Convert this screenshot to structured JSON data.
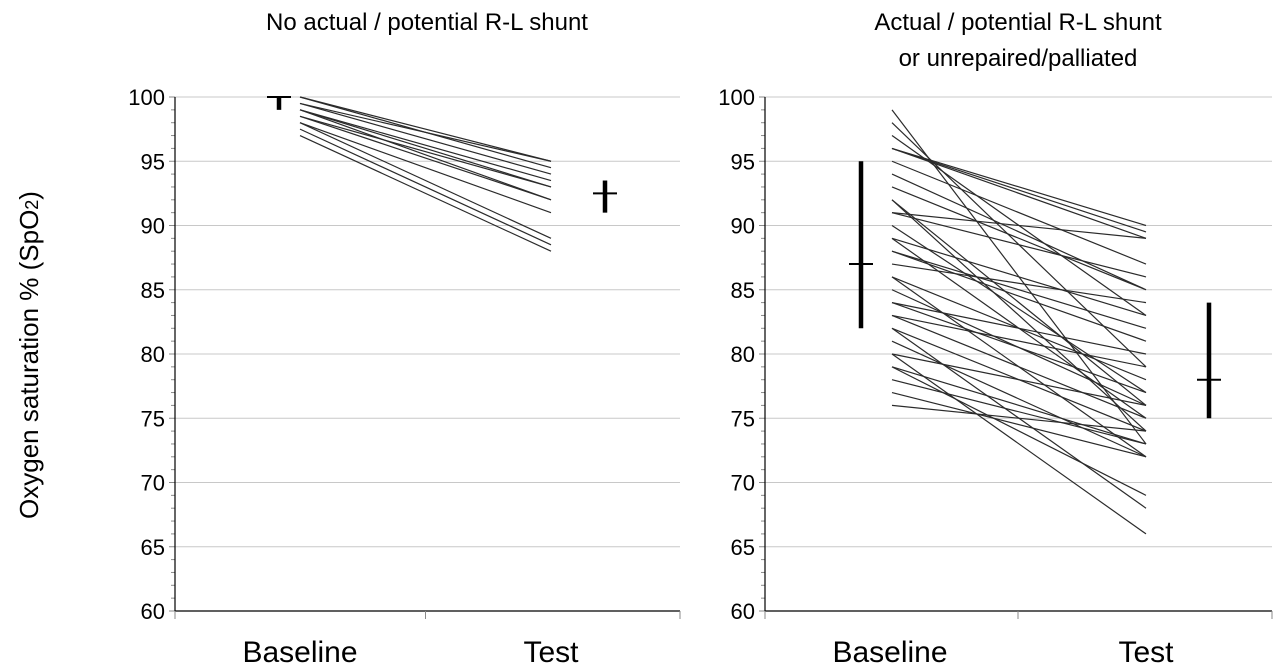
{
  "y_axis_title": {
    "main": "Oxygen saturation % (SpO",
    "sub": "2",
    "close": ")"
  },
  "chart_data": [
    {
      "type": "line",
      "title": "No actual / potential R-L shunt",
      "title_lines": [
        "No actual / potential R-L shunt"
      ],
      "categories": [
        "Baseline",
        "Test"
      ],
      "ylim": [
        60,
        100
      ],
      "yticks": [
        60,
        65,
        70,
        75,
        80,
        85,
        90,
        95,
        100
      ],
      "grid": true,
      "minor_ticks_every": 1,
      "baseline_summary": {
        "mean": 100,
        "low": 99,
        "high": 100
      },
      "test_summary": {
        "mean": 92.5,
        "low": 91,
        "high": 93.5
      },
      "series": [
        {
          "values": [
            100,
            95
          ]
        },
        {
          "values": [
            100,
            94.5
          ]
        },
        {
          "values": [
            99.5,
            94
          ]
        },
        {
          "values": [
            99.5,
            95
          ]
        },
        {
          "values": [
            99,
            93.5
          ]
        },
        {
          "values": [
            99,
            93
          ]
        },
        {
          "values": [
            99,
            92
          ]
        },
        {
          "values": [
            98.5,
            93
          ]
        },
        {
          "values": [
            98.5,
            92
          ]
        },
        {
          "values": [
            98,
            91
          ]
        },
        {
          "values": [
            98,
            89
          ]
        },
        {
          "values": [
            97.5,
            88.5
          ]
        },
        {
          "values": [
            97,
            88
          ]
        }
      ]
    },
    {
      "type": "line",
      "title": "Actual / potential R-L shunt or unrepaired/palliated",
      "title_lines": [
        "Actual / potential R-L shunt",
        "or unrepaired/palliated"
      ],
      "categories": [
        "Baseline",
        "Test"
      ],
      "ylim": [
        60,
        100
      ],
      "yticks": [
        60,
        65,
        70,
        75,
        80,
        85,
        90,
        95,
        100
      ],
      "grid": true,
      "minor_ticks_every": 1,
      "baseline_summary": {
        "mean": 87,
        "low": 82,
        "high": 95
      },
      "test_summary": {
        "mean": 78,
        "low": 75,
        "high": 84
      },
      "series": [
        {
          "values": [
            99,
            73
          ]
        },
        {
          "values": [
            98,
            79
          ]
        },
        {
          "values": [
            97,
            83
          ]
        },
        {
          "values": [
            96,
            90
          ]
        },
        {
          "values": [
            96,
            89.5
          ]
        },
        {
          "values": [
            96,
            89
          ]
        },
        {
          "values": [
            95,
            87
          ]
        },
        {
          "values": [
            94,
            85
          ]
        },
        {
          "values": [
            93,
            85
          ]
        },
        {
          "values": [
            92,
            76
          ]
        },
        {
          "values": [
            92,
            74
          ]
        },
        {
          "values": [
            91,
            89
          ]
        },
        {
          "values": [
            91,
            86
          ]
        },
        {
          "values": [
            90,
            77
          ]
        },
        {
          "values": [
            89,
            83
          ]
        },
        {
          "values": [
            89,
            75
          ]
        },
        {
          "values": [
            88,
            82
          ]
        },
        {
          "values": [
            88,
            81
          ]
        },
        {
          "values": [
            87,
            84
          ]
        },
        {
          "values": [
            86,
            72
          ]
        },
        {
          "values": [
            86,
            78
          ]
        },
        {
          "values": [
            85,
            76
          ]
        },
        {
          "values": [
            84,
            80
          ]
        },
        {
          "values": [
            84,
            77
          ]
        },
        {
          "values": [
            83,
            75
          ]
        },
        {
          "values": [
            83,
            79
          ]
        },
        {
          "values": [
            82,
            68
          ]
        },
        {
          "values": [
            82,
            74
          ]
        },
        {
          "values": [
            81,
            72
          ]
        },
        {
          "values": [
            80,
            66
          ]
        },
        {
          "values": [
            80,
            76
          ]
        },
        {
          "values": [
            79,
            73
          ]
        },
        {
          "values": [
            79,
            69
          ]
        },
        {
          "values": [
            78,
            73
          ]
        },
        {
          "values": [
            77,
            72
          ]
        },
        {
          "values": [
            76,
            74
          ]
        }
      ]
    }
  ]
}
